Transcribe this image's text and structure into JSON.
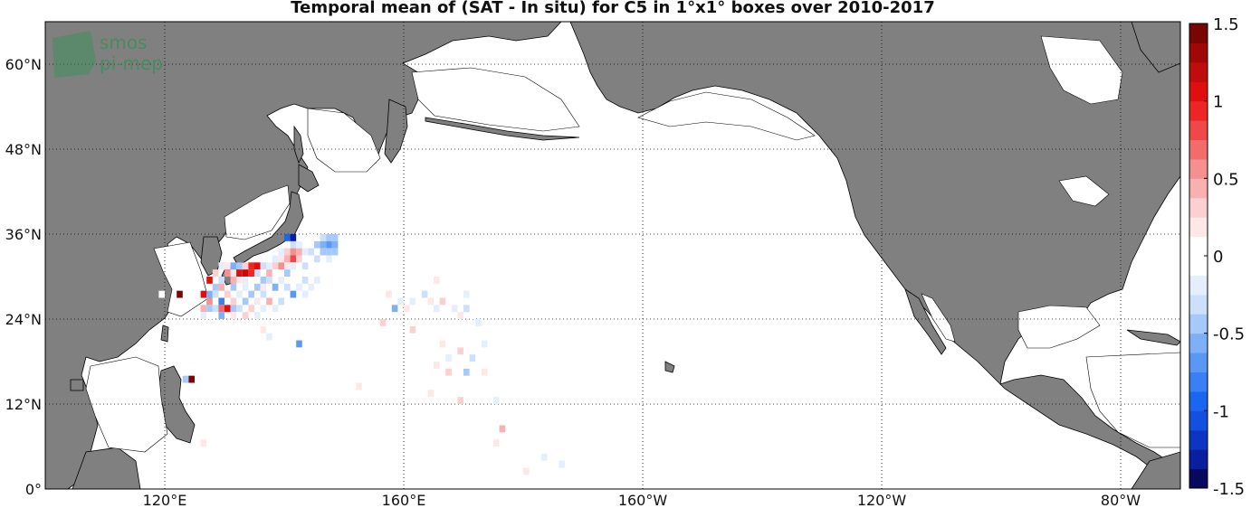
{
  "title": "Temporal mean of (SAT - In situ) for C5 in 1°x1° boxes over 2010-2017",
  "logo": {
    "line1": "smos",
    "line2": "pi-mep"
  },
  "map": {
    "lon_range": [
      100,
      290
    ],
    "lat_range": [
      0,
      66
    ],
    "land_color": "#808080",
    "ocean_color": "#ffffff",
    "grid_style": "dotted"
  },
  "lat_ticks": [
    {
      "value": 0,
      "label": "0°"
    },
    {
      "value": 12,
      "label": "12°N"
    },
    {
      "value": 24,
      "label": "24°N"
    },
    {
      "value": 36,
      "label": "36°N"
    },
    {
      "value": 48,
      "label": "48°N"
    },
    {
      "value": 60,
      "label": "60°N"
    }
  ],
  "lon_ticks": [
    {
      "value": 120,
      "label": "120°E"
    },
    {
      "value": 160,
      "label": "160°E"
    },
    {
      "value": 200,
      "label": "160°W"
    },
    {
      "value": 240,
      "label": "120°W"
    },
    {
      "value": 280,
      "label": "80°W"
    }
  ],
  "colorbar": {
    "min": -1.5,
    "max": 1.5,
    "ticks": [
      {
        "value": 1.5,
        "label": "1.5"
      },
      {
        "value": 1,
        "label": "1"
      },
      {
        "value": 0.5,
        "label": "0.5"
      },
      {
        "value": 0,
        "label": "0"
      },
      {
        "value": -0.5,
        "label": "-0.5"
      },
      {
        "value": -1,
        "label": "-1"
      },
      {
        "value": -1.5,
        "label": "-1.5"
      }
    ],
    "colors": [
      "#08085e",
      "#0a1ea0",
      "#0d35c4",
      "#1250e0",
      "#1a66f0",
      "#3a80f4",
      "#5a98f6",
      "#7eb0f8",
      "#a6c9fa",
      "#cce0fc",
      "#e4eefd",
      "#ffffff",
      "#ffffff",
      "#fde8e8",
      "#fcd0d0",
      "#f8b0b0",
      "#f59090",
      "#f26c6c",
      "#f04848",
      "#ee2525",
      "#e00f0f",
      "#c00c0c",
      "#a00808",
      "#7a0505"
    ]
  },
  "chart_data": {
    "type": "heatmap",
    "cell_size_deg": 1,
    "cells": [
      {
        "lon": 140,
        "lat": 35,
        "v": -0.9
      },
      {
        "lon": 141,
        "lat": 34,
        "v": -0.3
      },
      {
        "lon": 142,
        "lat": 34,
        "v": -0.2
      },
      {
        "lon": 144,
        "lat": 35,
        "v": -0.1
      },
      {
        "lon": 146,
        "lat": 35,
        "v": -0.3
      },
      {
        "lon": 147,
        "lat": 35,
        "v": -0.5
      },
      {
        "lon": 148,
        "lat": 35,
        "v": -0.5
      },
      {
        "lon": 146,
        "lat": 34,
        "v": -0.6
      },
      {
        "lon": 147,
        "lat": 34,
        "v": -0.7
      },
      {
        "lon": 148,
        "lat": 34,
        "v": -0.6
      },
      {
        "lon": 145,
        "lat": 34,
        "v": -0.4
      },
      {
        "lon": 141,
        "lat": 35,
        "v": -1.3
      },
      {
        "lon": 139,
        "lat": 33,
        "v": -0.2
      },
      {
        "lon": 140,
        "lat": 33,
        "v": 0.3
      },
      {
        "lon": 141,
        "lat": 33,
        "v": 0.5
      },
      {
        "lon": 142,
        "lat": 33,
        "v": 0.4
      },
      {
        "lon": 143,
        "lat": 33,
        "v": -0.2
      },
      {
        "lon": 144,
        "lat": 33,
        "v": -0.3
      },
      {
        "lon": 146,
        "lat": 33,
        "v": -0.4
      },
      {
        "lon": 147,
        "lat": 33,
        "v": -0.5
      },
      {
        "lon": 148,
        "lat": 33,
        "v": -0.4
      },
      {
        "lon": 138,
        "lat": 32,
        "v": -0.2
      },
      {
        "lon": 139,
        "lat": 32,
        "v": 0.2
      },
      {
        "lon": 140,
        "lat": 32,
        "v": 0.4
      },
      {
        "lon": 141,
        "lat": 32,
        "v": 0.8
      },
      {
        "lon": 142,
        "lat": 32,
        "v": 0.3
      },
      {
        "lon": 143,
        "lat": 32,
        "v": -0.1
      },
      {
        "lon": 145,
        "lat": 32,
        "v": -0.3
      },
      {
        "lon": 147,
        "lat": 32,
        "v": -0.2
      },
      {
        "lon": 129,
        "lat": 31,
        "v": -0.2
      },
      {
        "lon": 130,
        "lat": 31,
        "v": 0.2
      },
      {
        "lon": 131,
        "lat": 31,
        "v": -0.6
      },
      {
        "lon": 132,
        "lat": 31,
        "v": -0.4
      },
      {
        "lon": 133,
        "lat": 31,
        "v": 0.3
      },
      {
        "lon": 134,
        "lat": 31,
        "v": 0.9
      },
      {
        "lon": 135,
        "lat": 31,
        "v": 1.0
      },
      {
        "lon": 136,
        "lat": 31,
        "v": -0.3
      },
      {
        "lon": 137,
        "lat": 31,
        "v": -0.2
      },
      {
        "lon": 138,
        "lat": 31,
        "v": 0.3
      },
      {
        "lon": 139,
        "lat": 31,
        "v": 0.5
      },
      {
        "lon": 140,
        "lat": 31,
        "v": 0.2
      },
      {
        "lon": 141,
        "lat": 31,
        "v": -0.2
      },
      {
        "lon": 143,
        "lat": 31,
        "v": -0.3
      },
      {
        "lon": 128,
        "lat": 30,
        "v": 0.3
      },
      {
        "lon": 130,
        "lat": 30,
        "v": 0.5
      },
      {
        "lon": 131,
        "lat": 30,
        "v": 0.2
      },
      {
        "lon": 132,
        "lat": 30,
        "v": 1.1
      },
      {
        "lon": 133,
        "lat": 30,
        "v": 1.2
      },
      {
        "lon": 134,
        "lat": 30,
        "v": 0.9
      },
      {
        "lon": 135,
        "lat": 30,
        "v": -0.3
      },
      {
        "lon": 137,
        "lat": 30,
        "v": 0.4
      },
      {
        "lon": 138,
        "lat": 30,
        "v": -0.1
      },
      {
        "lon": 140,
        "lat": 30,
        "v": -0.4
      },
      {
        "lon": 127,
        "lat": 29,
        "v": 1.1
      },
      {
        "lon": 129,
        "lat": 29,
        "v": -0.3
      },
      {
        "lon": 131,
        "lat": 29,
        "v": 0.4
      },
      {
        "lon": 132,
        "lat": 29,
        "v": 0.2
      },
      {
        "lon": 133,
        "lat": 29,
        "v": -0.2
      },
      {
        "lon": 136,
        "lat": 29,
        "v": -0.4
      },
      {
        "lon": 137,
        "lat": 29,
        "v": -0.3
      },
      {
        "lon": 139,
        "lat": 29,
        "v": -0.2
      },
      {
        "lon": 141,
        "lat": 29,
        "v": -0.1
      },
      {
        "lon": 143,
        "lat": 29,
        "v": -0.3
      },
      {
        "lon": 145,
        "lat": 29,
        "v": -0.2
      },
      {
        "lon": 148,
        "lat": 29,
        "v": -0.1
      },
      {
        "lon": 128,
        "lat": 28,
        "v": -0.4
      },
      {
        "lon": 129,
        "lat": 28,
        "v": 0.4
      },
      {
        "lon": 131,
        "lat": 28,
        "v": -0.5
      },
      {
        "lon": 133,
        "lat": 28,
        "v": -0.2
      },
      {
        "lon": 135,
        "lat": 28,
        "v": -0.4
      },
      {
        "lon": 136,
        "lat": 28,
        "v": 0.2
      },
      {
        "lon": 138,
        "lat": 28,
        "v": -0.6
      },
      {
        "lon": 140,
        "lat": 28,
        "v": -0.3
      },
      {
        "lon": 142,
        "lat": 28,
        "v": -0.2
      },
      {
        "lon": 144,
        "lat": 28,
        "v": -0.2
      },
      {
        "lon": 147,
        "lat": 28,
        "v": -0.1
      },
      {
        "lon": 126,
        "lat": 27,
        "v": 1.1
      },
      {
        "lon": 127,
        "lat": 27,
        "v": -0.6
      },
      {
        "lon": 128,
        "lat": 27,
        "v": -0.3
      },
      {
        "lon": 130,
        "lat": 27,
        "v": 0.3
      },
      {
        "lon": 132,
        "lat": 27,
        "v": -0.2
      },
      {
        "lon": 134,
        "lat": 27,
        "v": -0.5
      },
      {
        "lon": 136,
        "lat": 27,
        "v": -0.3
      },
      {
        "lon": 139,
        "lat": 27,
        "v": -0.1
      },
      {
        "lon": 141,
        "lat": 27,
        "v": -0.7
      },
      {
        "lon": 143,
        "lat": 27,
        "v": -0.2
      },
      {
        "lon": 122,
        "lat": 27,
        "v": 1.5
      },
      {
        "lon": 119,
        "lat": 27,
        "v": -0.1
      },
      {
        "lon": 127,
        "lat": 26,
        "v": 0.6
      },
      {
        "lon": 129,
        "lat": 26,
        "v": -0.8
      },
      {
        "lon": 131,
        "lat": 26,
        "v": 0.3
      },
      {
        "lon": 133,
        "lat": 26,
        "v": -0.4
      },
      {
        "lon": 135,
        "lat": 26,
        "v": 0.2
      },
      {
        "lon": 137,
        "lat": 26,
        "v": 0.4
      },
      {
        "lon": 139,
        "lat": 26,
        "v": -0.3
      },
      {
        "lon": 126,
        "lat": 25,
        "v": 0.4
      },
      {
        "lon": 127,
        "lat": 25,
        "v": -0.5
      },
      {
        "lon": 128,
        "lat": 25,
        "v": -0.3
      },
      {
        "lon": 129,
        "lat": 25,
        "v": 0.7
      },
      {
        "lon": 130,
        "lat": 25,
        "v": 1.0
      },
      {
        "lon": 131,
        "lat": 25,
        "v": -0.4
      },
      {
        "lon": 132,
        "lat": 25,
        "v": -0.3
      },
      {
        "lon": 134,
        "lat": 25,
        "v": 0.3
      },
      {
        "lon": 136,
        "lat": 25,
        "v": -0.2
      },
      {
        "lon": 138,
        "lat": 25,
        "v": -0.2
      },
      {
        "lon": 140,
        "lat": 25,
        "v": -0.1
      },
      {
        "lon": 126,
        "lat": 24,
        "v": -0.2
      },
      {
        "lon": 127,
        "lat": 24,
        "v": -0.1
      },
      {
        "lon": 129,
        "lat": 24,
        "v": -0.6
      },
      {
        "lon": 131,
        "lat": 24,
        "v": 0.2
      },
      {
        "lon": 133,
        "lat": 24,
        "v": 0.3
      },
      {
        "lon": 135,
        "lat": 24,
        "v": -0.2
      },
      {
        "lon": 138,
        "lat": 24,
        "v": -0.1
      },
      {
        "lon": 136,
        "lat": 22,
        "v": 0.2
      },
      {
        "lon": 137,
        "lat": 21,
        "v": -0.2
      },
      {
        "lon": 133,
        "lat": 22,
        "v": -0.1
      },
      {
        "lon": 142,
        "lat": 20,
        "v": -0.7
      },
      {
        "lon": 121,
        "lat": 20,
        "v": -0.1
      },
      {
        "lon": 123,
        "lat": 15,
        "v": -0.5
      },
      {
        "lon": 124,
        "lat": 15,
        "v": 1.5
      },
      {
        "lon": 126,
        "lat": 16,
        "v": -0.1
      },
      {
        "lon": 143,
        "lat": 17,
        "v": -0.1
      },
      {
        "lon": 126,
        "lat": 6,
        "v": 0.2
      },
      {
        "lon": 142,
        "lat": 10,
        "v": -0.1
      },
      {
        "lon": 159,
        "lat": 15,
        "v": -0.1
      },
      {
        "lon": 156,
        "lat": 23,
        "v": 0.3
      },
      {
        "lon": 158,
        "lat": 25,
        "v": -0.6
      },
      {
        "lon": 157,
        "lat": 27,
        "v": 0.2
      },
      {
        "lon": 159,
        "lat": 26,
        "v": -0.2
      },
      {
        "lon": 160,
        "lat": 25,
        "v": 0.2
      },
      {
        "lon": 161,
        "lat": 26,
        "v": -0.2
      },
      {
        "lon": 162,
        "lat": 28,
        "v": 0.1
      },
      {
        "lon": 161,
        "lat": 29,
        "v": -0.1
      },
      {
        "lon": 163,
        "lat": 27,
        "v": -0.3
      },
      {
        "lon": 164,
        "lat": 26,
        "v": 0.2
      },
      {
        "lon": 165,
        "lat": 25,
        "v": -0.2
      },
      {
        "lon": 166,
        "lat": 26,
        "v": 0.3
      },
      {
        "lon": 167,
        "lat": 27,
        "v": -0.1
      },
      {
        "lon": 168,
        "lat": 25,
        "v": -0.2
      },
      {
        "lon": 169,
        "lat": 24,
        "v": 0.2
      },
      {
        "lon": 170,
        "lat": 25,
        "v": -0.3
      },
      {
        "lon": 171,
        "lat": 24,
        "v": -0.1
      },
      {
        "lon": 172,
        "lat": 23,
        "v": -0.2
      },
      {
        "lon": 173,
        "lat": 22,
        "v": -0.1
      },
      {
        "lon": 165,
        "lat": 29,
        "v": 0.2
      },
      {
        "lon": 168,
        "lat": 28,
        "v": -0.1
      },
      {
        "lon": 170,
        "lat": 27,
        "v": -0.2
      },
      {
        "lon": 161,
        "lat": 22,
        "v": 0.3
      },
      {
        "lon": 163,
        "lat": 21,
        "v": -0.1
      },
      {
        "lon": 166,
        "lat": 20,
        "v": 0.2
      },
      {
        "lon": 167,
        "lat": 18,
        "v": -0.2
      },
      {
        "lon": 169,
        "lat": 19,
        "v": 0.3
      },
      {
        "lon": 171,
        "lat": 18,
        "v": -0.3
      },
      {
        "lon": 173,
        "lat": 20,
        "v": -0.2
      },
      {
        "lon": 165,
        "lat": 17,
        "v": 0.2
      },
      {
        "lon": 167,
        "lat": 16,
        "v": 0.3
      },
      {
        "lon": 170,
        "lat": 16,
        "v": -0.4
      },
      {
        "lon": 173,
        "lat": 16,
        "v": 0.2
      },
      {
        "lon": 169,
        "lat": 12,
        "v": 0.3
      },
      {
        "lon": 164,
        "lat": 13,
        "v": 0.2
      },
      {
        "lon": 169,
        "lat": 10,
        "v": -0.1
      },
      {
        "lon": 176,
        "lat": 8,
        "v": 0.4
      },
      {
        "lon": 175,
        "lat": 6,
        "v": 0.2
      },
      {
        "lon": 183,
        "lat": 4,
        "v": -0.2
      },
      {
        "lon": 186,
        "lat": 3,
        "v": -0.2
      },
      {
        "lon": 180,
        "lat": 2,
        "v": 0.2
      },
      {
        "lon": 152,
        "lat": 14,
        "v": 0.2
      },
      {
        "lon": 175,
        "lat": 12,
        "v": -0.2
      }
    ]
  }
}
